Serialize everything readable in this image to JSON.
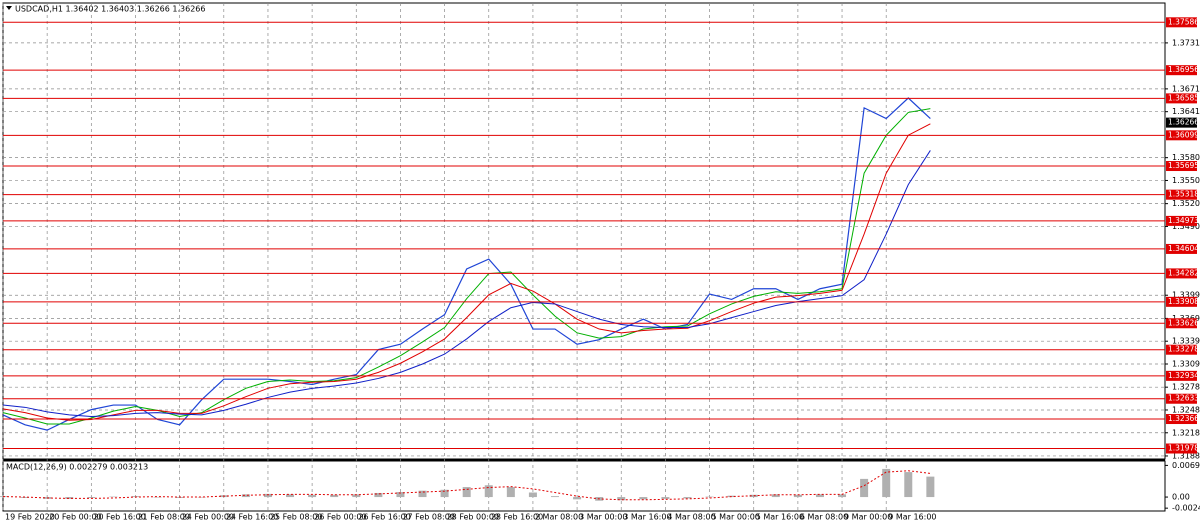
{
  "chart_data": [
    {
      "type": "line",
      "title": "USDCAD,H1  1.36402 1.36403 1.36266 1.36266",
      "categories": [
        "19 Feb 2020",
        null,
        "20 Feb 00:00",
        null,
        "20 Feb 16:00",
        null,
        "21 Feb 08:00",
        null,
        "24 Feb 00:00",
        null,
        "24 Feb 16:00",
        null,
        "25 Feb 08:00",
        null,
        "26 Feb 00:00",
        null,
        "26 Feb 16:00",
        null,
        "27 Feb 08:00",
        null,
        "28 Feb 00:00",
        null,
        "28 Feb 16:00",
        null,
        "2 Mar 08:00",
        null,
        "3 Mar 00:00",
        null,
        "3 Mar 16:00",
        null,
        "4 Mar 08:00",
        null,
        "5 Mar 00:00",
        null,
        "5 Mar 16:00",
        null,
        "6 Mar 08:00",
        null,
        "9 Mar 00:00",
        null,
        "9 Mar 16:00",
        null,
        null
      ],
      "series": [
        {
          "color": "#1f45d6",
          "values": [
            1.3242,
            1.3229,
            1.3222,
            1.3236,
            1.3249,
            1.3255,
            1.3255,
            1.3236,
            1.3229,
            1.3262,
            1.3289,
            1.3289,
            1.3289,
            1.3286,
            1.3282,
            1.3289,
            1.3295,
            1.3328,
            1.3335,
            1.3355,
            1.3374,
            1.3434,
            1.3447,
            1.3414,
            1.3355,
            1.3355,
            1.3335,
            1.3341,
            1.3355,
            1.3368,
            1.3355,
            1.3361,
            1.3401,
            1.3394,
            1.3408,
            1.3408,
            1.3394,
            1.3408,
            1.3414,
            1.3646,
            1.3632,
            1.3659,
            1.3632
          ]
        },
        {
          "color": "#00b000",
          "values": [
            1.3245,
            1.3238,
            1.323,
            1.323,
            1.3238,
            1.3247,
            1.3253,
            1.3248,
            1.324,
            1.3245,
            1.3262,
            1.3277,
            1.3286,
            1.3288,
            1.3286,
            1.3287,
            1.3291,
            1.3305,
            1.332,
            1.3338,
            1.3357,
            1.3395,
            1.3428,
            1.343,
            1.34,
            1.3372,
            1.335,
            1.3343,
            1.3345,
            1.3355,
            1.3358,
            1.3359,
            1.3375,
            1.3388,
            1.3398,
            1.3404,
            1.3402,
            1.3404,
            1.3408,
            1.356,
            1.361,
            1.364,
            1.3645
          ]
        },
        {
          "color": "#e00000",
          "values": [
            1.325,
            1.3245,
            1.3238,
            1.3235,
            1.3236,
            1.3242,
            1.3248,
            1.3248,
            1.3244,
            1.3244,
            1.3254,
            1.3266,
            1.3277,
            1.3283,
            1.3285,
            1.3286,
            1.3289,
            1.3298,
            1.331,
            1.3325,
            1.3342,
            1.337,
            1.34,
            1.3415,
            1.3405,
            1.3388,
            1.3368,
            1.3355,
            1.335,
            1.3353,
            1.3355,
            1.3356,
            1.3366,
            1.3378,
            1.3389,
            1.3397,
            1.3399,
            1.3402,
            1.3406,
            1.348,
            1.356,
            1.361,
            1.3625
          ]
        },
        {
          "color": "#1020c8",
          "values": [
            1.3255,
            1.3252,
            1.3246,
            1.3242,
            1.324,
            1.3241,
            1.3244,
            1.3245,
            1.3243,
            1.3242,
            1.3248,
            1.3256,
            1.3265,
            1.3272,
            1.3277,
            1.328,
            1.3284,
            1.329,
            1.3298,
            1.3309,
            1.3322,
            1.3342,
            1.3365,
            1.3383,
            1.339,
            1.3388,
            1.3378,
            1.3368,
            1.3361,
            1.3358,
            1.3357,
            1.3357,
            1.3362,
            1.337,
            1.3378,
            1.3386,
            1.3391,
            1.3395,
            1.3399,
            1.342,
            1.348,
            1.3545,
            1.359
          ]
        }
      ],
      "ylim": [
        1.3184,
        1.3784
      ],
      "yticks": [
        1.37315,
        {
          "value": 1.3671,
          "label": "1.36710"
        },
        {
          "value": 1.3641,
          "label": "1.36410"
        },
        1.35805,
        1.35505,
        {
          "value": 1.352,
          "label": "1.35200"
        },
        {
          "value": 1.349,
          "label": "1.34900"
        },
        1.33995,
        {
          "value": 1.3369,
          "label": "1.33690"
        },
        {
          "value": 1.3339,
          "label": "1.33390"
        },
        {
          "value": 1.3309,
          "label": "1.33090"
        },
        1.32785,
        1.32485,
        1.32185,
        {
          "value": 1.3188,
          "label": "1.31880"
        }
      ],
      "levels": [
        1.37586,
        1.36956,
        1.36585,
        1.36099,
        1.35695,
        1.35318,
        1.34973,
        1.34604,
        1.34282,
        1.33908,
        1.33626,
        1.33278,
        1.32934,
        1.32633,
        1.32366,
        1.31978
      ],
      "level_color": "#e00000",
      "current": 1.36266,
      "grid": true
    },
    {
      "type": "macd",
      "title": "MACD(12,26,9) 0.002279 0.003213",
      "series": [
        {
          "color": "#b0b0b0",
          "style": "bar",
          "values": [
            0.0002,
            -0.0002,
            -0.0004,
            -0.0004,
            -0.0002,
            0.0001,
            0.0002,
            0.0,
            -0.0002,
            0.0,
            0.0004,
            0.0006,
            0.0007,
            0.0006,
            0.0005,
            0.0005,
            0.0006,
            0.0009,
            0.0011,
            0.0014,
            0.0016,
            0.0022,
            0.0026,
            0.0022,
            0.001,
            0.0002,
            -0.0005,
            -0.0008,
            -0.0007,
            -0.0005,
            -0.0004,
            -0.0003,
            0.0001,
            0.0003,
            0.0005,
            0.0006,
            0.0005,
            0.0006,
            0.0006,
            0.004,
            0.0062,
            0.0055,
            0.0045
          ]
        },
        {
          "color": "#e00000",
          "style": "dotted",
          "values": [
            0.0001,
            0.0,
            -0.0002,
            -0.0003,
            -0.0003,
            -0.0002,
            0.0,
            0.0001,
            0.0,
            0.0,
            0.0002,
            0.0004,
            0.0005,
            0.0006,
            0.0006,
            0.0005,
            0.0005,
            0.0007,
            0.0009,
            0.0011,
            0.0013,
            0.0017,
            0.0021,
            0.0023,
            0.0018,
            0.001,
            0.0002,
            -0.0004,
            -0.0006,
            -0.0006,
            -0.0005,
            -0.0004,
            -0.0002,
            0.0001,
            0.0003,
            0.0005,
            0.0005,
            0.0006,
            0.0006,
            0.0025,
            0.0055,
            0.0058,
            0.0052
          ]
        }
      ],
      "ylim": [
        -0.00285,
        0.0075
      ],
      "yticks": [
        0.006972,
        {
          "value": 0,
          "label": "0.00"
        },
        -0.002444
      ]
    }
  ]
}
